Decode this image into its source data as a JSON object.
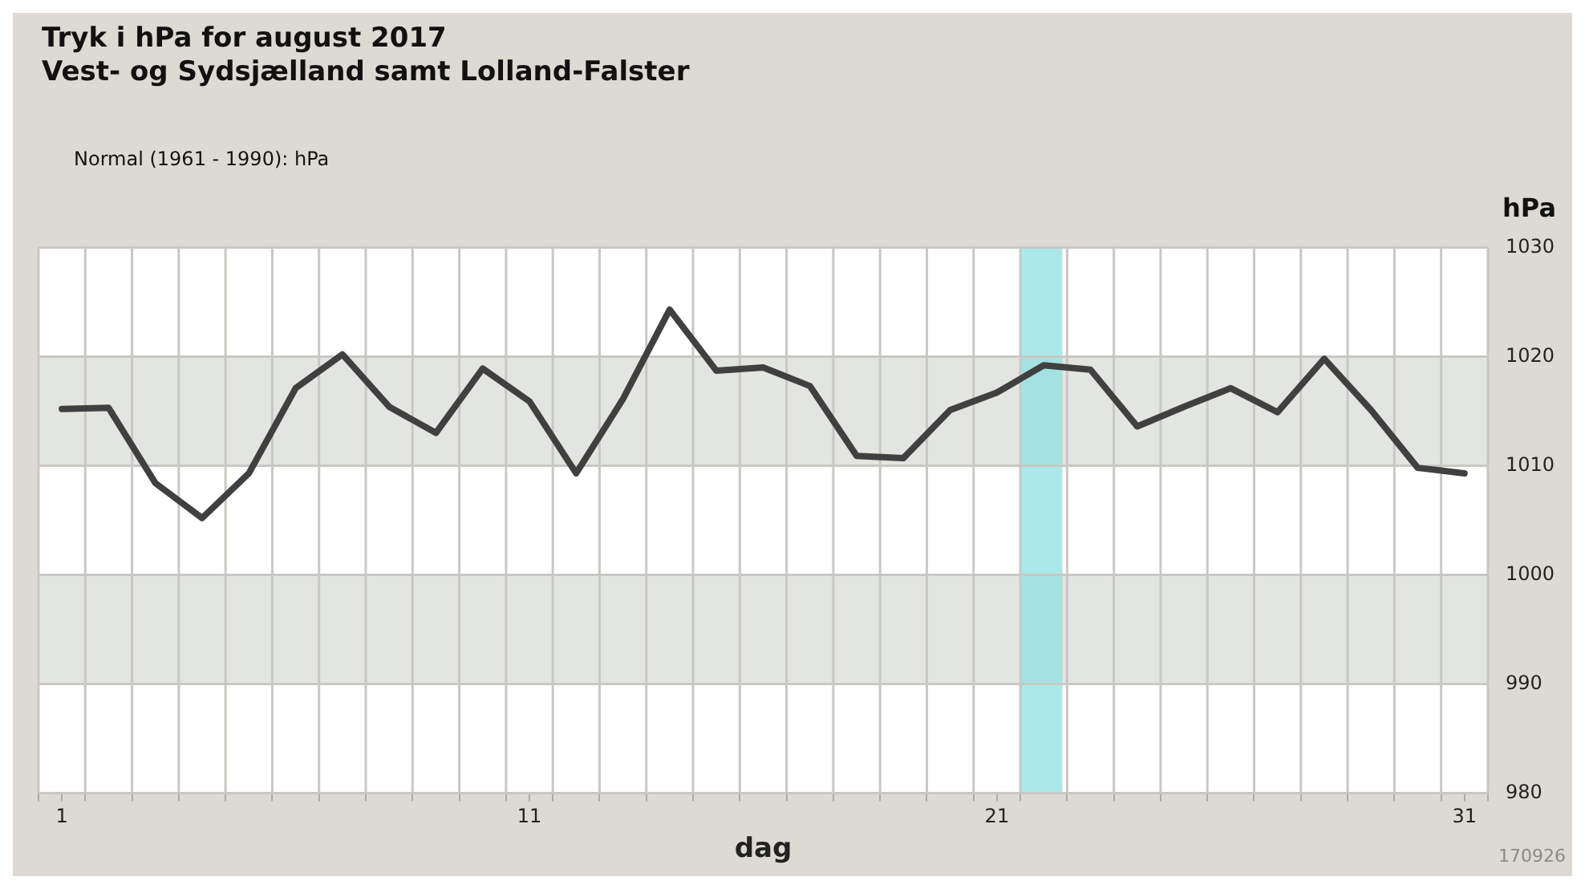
{
  "chart_data": {
    "type": "line",
    "title": "Tryk i hPa for august 2017",
    "subtitle": "Vest- og Sydsjælland samt Lolland-Falster",
    "xlabel": "dag",
    "ylabel": "hPa",
    "annotations": [
      "Normal (1961 - 1990):  hPa",
      "170926"
    ],
    "x": [
      1,
      2,
      3,
      4,
      5,
      6,
      7,
      8,
      9,
      10,
      11,
      12,
      13,
      14,
      15,
      16,
      17,
      18,
      19,
      20,
      21,
      22,
      23,
      24,
      25,
      26,
      27,
      28,
      29,
      30,
      31
    ],
    "series": [
      {
        "color": "#404040",
        "values": [
          1015.2,
          1015.3,
          1008.4,
          1005.2,
          1009.3,
          1017.1,
          1020.2,
          1015.4,
          1013.0,
          1018.9,
          1015.9,
          1009.3,
          1016.1,
          1024.3,
          1018.7,
          1019.0,
          1017.3,
          1010.9,
          1010.7,
          1015.1,
          1016.7,
          1019.2,
          1018.8,
          1013.6,
          1015.4,
          1017.1,
          1014.9,
          1019.8,
          1015.1,
          1009.8,
          1009.3
        ]
      }
    ],
    "xlim": [
      0.5,
      31.5
    ],
    "xticks": [
      {
        "value": 0.5,
        "label": null
      },
      1,
      {
        "value": 1.5,
        "label": null
      },
      {
        "value": 2.5,
        "label": null
      },
      {
        "value": 3.5,
        "label": null
      },
      {
        "value": 4.5,
        "label": null
      },
      {
        "value": 5.5,
        "label": null
      },
      {
        "value": 6.5,
        "label": null
      },
      {
        "value": 7.5,
        "label": null
      },
      {
        "value": 8.5,
        "label": null
      },
      {
        "value": 9.5,
        "label": null
      },
      {
        "value": 10.5,
        "label": null
      },
      11,
      {
        "value": 11.5,
        "label": null
      },
      {
        "value": 12.5,
        "label": null
      },
      {
        "value": 13.5,
        "label": null
      },
      {
        "value": 14.5,
        "label": null
      },
      {
        "value": 15.5,
        "label": null
      },
      {
        "value": 16.5,
        "label": null
      },
      {
        "value": 17.5,
        "label": null
      },
      {
        "value": 18.5,
        "label": null
      },
      {
        "value": 19.5,
        "label": null
      },
      {
        "value": 20.5,
        "label": null
      },
      21,
      {
        "value": 21.5,
        "label": null
      },
      {
        "value": 22.5,
        "label": null
      },
      {
        "value": 23.5,
        "label": null
      },
      {
        "value": 24.5,
        "label": null
      },
      {
        "value": 25.5,
        "label": null
      },
      {
        "value": 26.5,
        "label": null
      },
      {
        "value": 27.5,
        "label": null
      },
      {
        "value": 28.5,
        "label": null
      },
      {
        "value": 29.5,
        "label": null
      },
      {
        "value": 30.5,
        "label": null
      },
      31,
      {
        "value": 31.5,
        "label": null
      }
    ],
    "ylim": [
      980,
      1030
    ],
    "yticks": [
      980,
      990,
      1000,
      1010,
      1020,
      1030
    ],
    "bands": [
      {
        "axis": "y",
        "from": 1010,
        "to": 1020,
        "color": "#e3e5e0"
      },
      {
        "axis": "y",
        "from": 990,
        "to": 1000,
        "color": "#e3e5e0"
      },
      {
        "axis": "x",
        "from": 21.5,
        "to": 22.4,
        "color": "#8fe0e2"
      }
    ],
    "grid": true,
    "marker": "none",
    "line_style": "solid"
  }
}
